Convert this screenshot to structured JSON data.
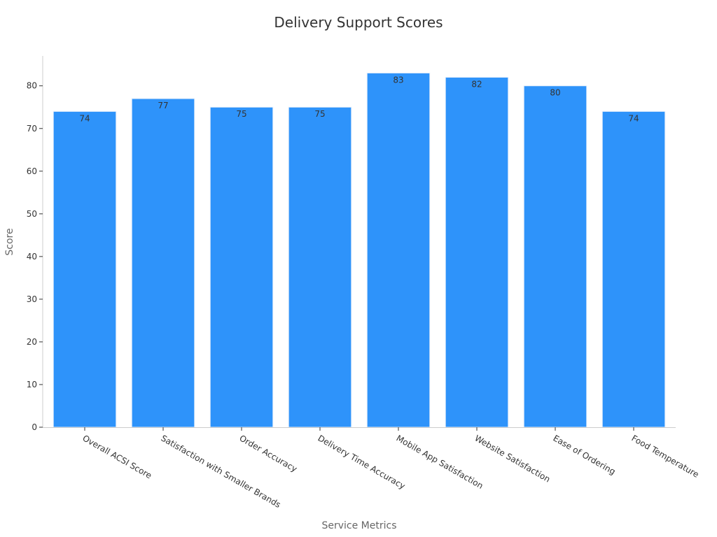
{
  "chart_data": {
    "type": "bar",
    "title": "Delivery Support Scores",
    "xlabel": "Service Metrics",
    "ylabel": "Score",
    "categories": [
      "Overall ACSI Score",
      "Satisfaction with Smaller Brands",
      "Order Accuracy",
      "Delivery Time Accuracy",
      "Mobile App Satisfaction",
      "Website Satisfaction",
      "Ease of Ordering",
      "Food Temperature"
    ],
    "values": [
      74,
      77,
      75,
      75,
      83,
      82,
      80,
      74
    ],
    "yticks": [
      0,
      10,
      20,
      30,
      40,
      50,
      60,
      70,
      80
    ],
    "ylim": [
      0,
      87
    ],
    "grid": false,
    "legend": "none",
    "bar_color": "#2E93FA"
  }
}
